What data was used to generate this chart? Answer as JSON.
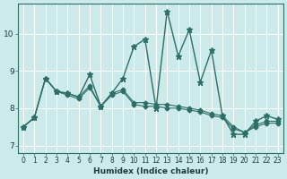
{
  "title": "",
  "xlabel": "Humidex (Indice chaleur)",
  "bg_color": "#cceaea",
  "grid_color": "#ffffff",
  "line_color": "#2d6e65",
  "xlim": [
    -0.5,
    23.5
  ],
  "ylim": [
    6.8,
    10.8
  ],
  "yticks": [
    7,
    8,
    9,
    10
  ],
  "xtick_labels": [
    "0",
    "1",
    "2",
    "3",
    "4",
    "5",
    "6",
    "7",
    "8",
    "9",
    "10",
    "11",
    "12",
    "13",
    "14",
    "15",
    "16",
    "17",
    "18",
    "19",
    "20",
    "21",
    "22",
    "23"
  ],
  "series": [
    [
      7.5,
      7.75,
      8.8,
      8.45,
      8.4,
      8.3,
      8.9,
      8.05,
      8.4,
      8.8,
      9.65,
      9.85,
      8.0,
      10.6,
      9.4,
      10.1,
      8.7,
      9.55,
      7.8,
      7.3,
      7.3,
      7.65,
      7.8,
      7.7
    ],
    [
      7.5,
      7.75,
      8.8,
      8.45,
      8.4,
      8.3,
      8.6,
      8.05,
      8.4,
      8.5,
      8.15,
      8.15,
      8.1,
      8.1,
      8.05,
      8.0,
      7.95,
      7.85,
      7.8,
      7.5,
      7.35,
      7.55,
      7.65,
      7.65
    ],
    [
      7.5,
      7.75,
      8.8,
      8.45,
      8.35,
      8.25,
      8.55,
      8.05,
      8.35,
      8.45,
      8.1,
      8.05,
      8.05,
      8.0,
      8.0,
      7.95,
      7.9,
      7.8,
      7.75,
      7.45,
      7.35,
      7.5,
      7.6,
      7.6
    ]
  ]
}
